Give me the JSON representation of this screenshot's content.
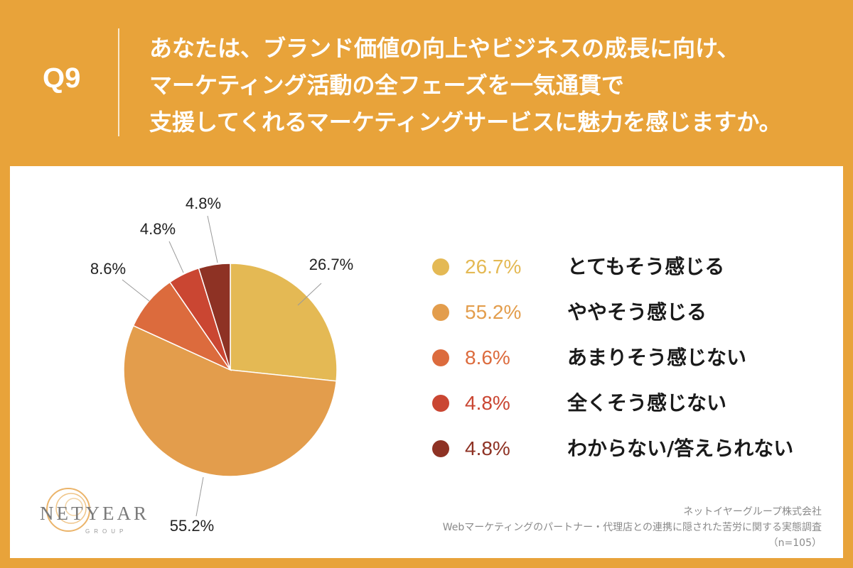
{
  "question": {
    "number": "Q9",
    "lines": [
      "あなたは、ブランド価値の向上やビジネスの成長に向け、",
      "マーケティング活動の全フェーズを一気通貫で",
      "支援してくれるマーケティングサービスに魅力を感じますか。"
    ]
  },
  "chart_data": {
    "type": "pie",
    "title": "あなたは、ブランド価値の向上やビジネスの成長に向け、マーケティング活動の全フェーズを一気通貫で支援してくれるマーケティングサービスに魅力を感じますか。",
    "start": "12 o'clock, clockwise",
    "slices": [
      {
        "label": "とてもそう感じる",
        "value": 26.7,
        "display": "26.7%",
        "color": "#E4B954"
      },
      {
        "label": "ややそう感じる",
        "value": 55.2,
        "display": "55.2%",
        "color": "#E39D4C"
      },
      {
        "label": "あまりそう感じない",
        "value": 8.6,
        "display": "8.6%",
        "color": "#DC6B3D"
      },
      {
        "label": "全くそう感じない",
        "value": 4.8,
        "display": "4.8%",
        "color": "#CA4632"
      },
      {
        "label": "わからない/答えられない",
        "value": 4.8,
        "display": "4.8%",
        "color": "#8E3224"
      }
    ],
    "legend_position": "right"
  },
  "logo": {
    "text": "NETYEAR",
    "sub": "GROUP"
  },
  "source": {
    "company": "ネットイヤーグループ株式会社",
    "survey": "Webマーケティングのパートナー・代理店との連携に隠された苦労に関する実態調査",
    "sample": "（n=105）"
  }
}
